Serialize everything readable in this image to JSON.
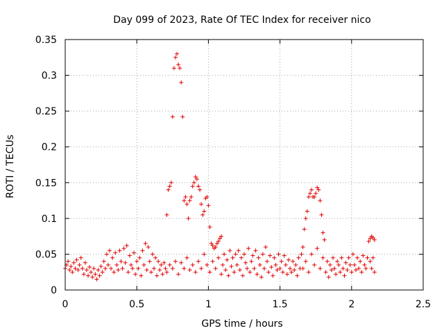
{
  "chart_data": {
    "type": "scatter",
    "title": "Day 099 of 2023, Rate Of TEC Index for receiver nico",
    "xlabel": "GPS time / hours",
    "ylabel": "ROTI / TECUs",
    "xlim": [
      0,
      2.5
    ],
    "ylim": [
      0,
      0.35
    ],
    "xticks": [
      0,
      0.5,
      1,
      1.5,
      2,
      2.5
    ],
    "xtick_labels": [
      "0",
      "0.5",
      "1",
      "1.5",
      "2",
      "2.5"
    ],
    "yticks": [
      0,
      0.05,
      0.1,
      0.15,
      0.2,
      0.25,
      0.3,
      0.35
    ],
    "ytick_labels": [
      "0",
      "0.05",
      "0.1",
      "0.15",
      "0.2",
      "0.25",
      "0.3",
      "0.35"
    ],
    "grid": true,
    "marker": "+",
    "color": "#e00000",
    "series": [
      {
        "name": "",
        "points": [
          [
            0.0,
            0.03
          ],
          [
            0.01,
            0.035
          ],
          [
            0.02,
            0.04
          ],
          [
            0.03,
            0.028
          ],
          [
            0.04,
            0.033
          ],
          [
            0.05,
            0.025
          ],
          [
            0.06,
            0.038
          ],
          [
            0.07,
            0.03
          ],
          [
            0.08,
            0.042
          ],
          [
            0.09,
            0.028
          ],
          [
            0.1,
            0.035
          ],
          [
            0.11,
            0.045
          ],
          [
            0.12,
            0.03
          ],
          [
            0.13,
            0.022
          ],
          [
            0.14,
            0.038
          ],
          [
            0.15,
            0.028
          ],
          [
            0.16,
            0.02
          ],
          [
            0.17,
            0.032
          ],
          [
            0.18,
            0.025
          ],
          [
            0.19,
            0.018
          ],
          [
            0.2,
            0.03
          ],
          [
            0.21,
            0.022
          ],
          [
            0.22,
            0.015
          ],
          [
            0.23,
            0.028
          ],
          [
            0.24,
            0.02
          ],
          [
            0.25,
            0.033
          ],
          [
            0.26,
            0.025
          ],
          [
            0.27,
            0.04
          ],
          [
            0.28,
            0.03
          ],
          [
            0.29,
            0.05
          ],
          [
            0.3,
            0.035
          ],
          [
            0.31,
            0.055
          ],
          [
            0.32,
            0.03
          ],
          [
            0.33,
            0.045
          ],
          [
            0.34,
            0.025
          ],
          [
            0.35,
            0.052
          ],
          [
            0.36,
            0.035
          ],
          [
            0.37,
            0.028
          ],
          [
            0.38,
            0.055
          ],
          [
            0.39,
            0.04
          ],
          [
            0.4,
            0.03
          ],
          [
            0.41,
            0.058
          ],
          [
            0.42,
            0.038
          ],
          [
            0.43,
            0.062
          ],
          [
            0.44,
            0.025
          ],
          [
            0.45,
            0.048
          ],
          [
            0.46,
            0.035
          ],
          [
            0.47,
            0.03
          ],
          [
            0.48,
            0.052
          ],
          [
            0.49,
            0.022
          ],
          [
            0.5,
            0.04
          ],
          [
            0.51,
            0.03
          ],
          [
            0.52,
            0.045
          ],
          [
            0.53,
            0.02
          ],
          [
            0.54,
            0.055
          ],
          [
            0.55,
            0.035
          ],
          [
            0.56,
            0.065
          ],
          [
            0.57,
            0.028
          ],
          [
            0.58,
            0.06
          ],
          [
            0.59,
            0.04
          ],
          [
            0.6,
            0.025
          ],
          [
            0.61,
            0.05
          ],
          [
            0.62,
            0.03
          ],
          [
            0.63,
            0.045
          ],
          [
            0.64,
            0.02
          ],
          [
            0.65,
            0.04
          ],
          [
            0.66,
            0.028
          ],
          [
            0.67,
            0.035
          ],
          [
            0.68,
            0.022
          ],
          [
            0.69,
            0.038
          ],
          [
            0.7,
            0.03
          ],
          [
            0.71,
            0.105
          ],
          [
            0.72,
            0.14
          ],
          [
            0.73,
            0.145
          ],
          [
            0.74,
            0.15
          ],
          [
            0.75,
            0.242
          ],
          [
            0.76,
            0.31
          ],
          [
            0.77,
            0.325
          ],
          [
            0.78,
            0.33
          ],
          [
            0.79,
            0.315
          ],
          [
            0.8,
            0.31
          ],
          [
            0.81,
            0.29
          ],
          [
            0.82,
            0.242
          ],
          [
            0.83,
            0.125
          ],
          [
            0.84,
            0.13
          ],
          [
            0.85,
            0.12
          ],
          [
            0.86,
            0.1
          ],
          [
            0.87,
            0.125
          ],
          [
            0.88,
            0.13
          ],
          [
            0.89,
            0.145
          ],
          [
            0.9,
            0.15
          ],
          [
            0.91,
            0.158
          ],
          [
            0.92,
            0.155
          ],
          [
            0.93,
            0.145
          ],
          [
            0.94,
            0.14
          ],
          [
            0.95,
            0.12
          ],
          [
            0.96,
            0.105
          ],
          [
            0.97,
            0.11
          ],
          [
            0.98,
            0.128
          ],
          [
            0.99,
            0.13
          ],
          [
            1.0,
            0.118
          ],
          [
            1.01,
            0.088
          ],
          [
            1.02,
            0.065
          ],
          [
            1.03,
            0.062
          ],
          [
            1.04,
            0.058
          ],
          [
            1.05,
            0.06
          ],
          [
            1.06,
            0.065
          ],
          [
            1.07,
            0.068
          ],
          [
            1.08,
            0.072
          ],
          [
            1.09,
            0.075
          ],
          [
            0.71,
            0.025
          ],
          [
            0.73,
            0.035
          ],
          [
            0.75,
            0.03
          ],
          [
            0.77,
            0.04
          ],
          [
            0.79,
            0.022
          ],
          [
            0.81,
            0.038
          ],
          [
            0.83,
            0.03
          ],
          [
            0.85,
            0.045
          ],
          [
            0.87,
            0.028
          ],
          [
            0.89,
            0.035
          ],
          [
            0.91,
            0.025
          ],
          [
            0.93,
            0.04
          ],
          [
            0.95,
            0.03
          ],
          [
            0.97,
            0.05
          ],
          [
            0.99,
            0.035
          ],
          [
            1.01,
            0.025
          ],
          [
            1.03,
            0.04
          ],
          [
            1.05,
            0.03
          ],
          [
            1.07,
            0.045
          ],
          [
            1.09,
            0.022
          ],
          [
            1.1,
            0.035
          ],
          [
            1.11,
            0.05
          ],
          [
            1.12,
            0.028
          ],
          [
            1.13,
            0.042
          ],
          [
            1.14,
            0.02
          ],
          [
            1.15,
            0.055
          ],
          [
            1.16,
            0.033
          ],
          [
            1.17,
            0.045
          ],
          [
            1.18,
            0.025
          ],
          [
            1.19,
            0.05
          ],
          [
            1.2,
            0.035
          ],
          [
            1.21,
            0.055
          ],
          [
            1.22,
            0.028
          ],
          [
            1.23,
            0.045
          ],
          [
            1.24,
            0.02
          ],
          [
            1.25,
            0.05
          ],
          [
            1.26,
            0.038
          ],
          [
            1.27,
            0.03
          ],
          [
            1.28,
            0.058
          ],
          [
            1.29,
            0.025
          ],
          [
            1.3,
            0.04
          ],
          [
            1.31,
            0.048
          ],
          [
            1.32,
            0.03
          ],
          [
            1.33,
            0.055
          ],
          [
            1.34,
            0.022
          ],
          [
            1.35,
            0.045
          ],
          [
            1.36,
            0.035
          ],
          [
            1.37,
            0.018
          ],
          [
            1.38,
            0.05
          ],
          [
            1.39,
            0.03
          ],
          [
            1.4,
            0.06
          ],
          [
            1.41,
            0.04
          ],
          [
            1.42,
            0.025
          ],
          [
            1.43,
            0.048
          ],
          [
            1.44,
            0.032
          ],
          [
            1.45,
            0.02
          ],
          [
            1.46,
            0.045
          ],
          [
            1.47,
            0.035
          ],
          [
            1.48,
            0.028
          ],
          [
            1.49,
            0.05
          ],
          [
            1.5,
            0.03
          ],
          [
            1.51,
            0.04
          ],
          [
            1.52,
            0.025
          ],
          [
            1.53,
            0.048
          ],
          [
            1.54,
            0.035
          ],
          [
            1.55,
            0.022
          ],
          [
            1.56,
            0.042
          ],
          [
            1.57,
            0.03
          ],
          [
            1.58,
            0.025
          ],
          [
            1.59,
            0.04
          ],
          [
            1.6,
            0.028
          ],
          [
            1.61,
            0.035
          ],
          [
            1.62,
            0.02
          ],
          [
            1.63,
            0.045
          ],
          [
            1.64,
            0.03
          ],
          [
            1.65,
            0.05
          ],
          [
            1.66,
            0.06
          ],
          [
            1.67,
            0.085
          ],
          [
            1.68,
            0.1
          ],
          [
            1.69,
            0.11
          ],
          [
            1.7,
            0.13
          ],
          [
            1.71,
            0.135
          ],
          [
            1.72,
            0.14
          ],
          [
            1.73,
            0.13
          ],
          [
            1.74,
            0.13
          ],
          [
            1.75,
            0.135
          ],
          [
            1.76,
            0.143
          ],
          [
            1.77,
            0.14
          ],
          [
            1.78,
            0.125
          ],
          [
            1.79,
            0.105
          ],
          [
            1.8,
            0.08
          ],
          [
            1.81,
            0.07
          ],
          [
            1.66,
            0.03
          ],
          [
            1.68,
            0.04
          ],
          [
            1.7,
            0.025
          ],
          [
            1.72,
            0.05
          ],
          [
            1.74,
            0.035
          ],
          [
            1.76,
            0.058
          ],
          [
            1.78,
            0.03
          ],
          [
            1.8,
            0.045
          ],
          [
            1.82,
            0.025
          ],
          [
            1.83,
            0.04
          ],
          [
            1.84,
            0.018
          ],
          [
            1.85,
            0.035
          ],
          [
            1.86,
            0.028
          ],
          [
            1.87,
            0.045
          ],
          [
            1.88,
            0.03
          ],
          [
            1.89,
            0.022
          ],
          [
            1.9,
            0.04
          ],
          [
            1.91,
            0.035
          ],
          [
            1.92,
            0.025
          ],
          [
            1.93,
            0.045
          ],
          [
            1.94,
            0.03
          ],
          [
            1.95,
            0.02
          ],
          [
            1.96,
            0.038
          ],
          [
            1.97,
            0.028
          ],
          [
            1.98,
            0.045
          ],
          [
            1.99,
            0.035
          ],
          [
            2.0,
            0.025
          ],
          [
            2.01,
            0.05
          ],
          [
            2.02,
            0.035
          ],
          [
            2.03,
            0.028
          ],
          [
            2.04,
            0.045
          ],
          [
            2.05,
            0.03
          ],
          [
            2.06,
            0.04
          ],
          [
            2.07,
            0.025
          ],
          [
            2.08,
            0.048
          ],
          [
            2.09,
            0.035
          ],
          [
            2.1,
            0.03
          ],
          [
            2.11,
            0.045
          ],
          [
            2.12,
            0.068
          ],
          [
            2.13,
            0.072
          ],
          [
            2.14,
            0.075
          ],
          [
            2.15,
            0.073
          ],
          [
            2.16,
            0.07
          ],
          [
            2.13,
            0.04
          ],
          [
            2.14,
            0.03
          ],
          [
            2.15,
            0.045
          ],
          [
            2.16,
            0.025
          ]
        ]
      }
    ]
  }
}
